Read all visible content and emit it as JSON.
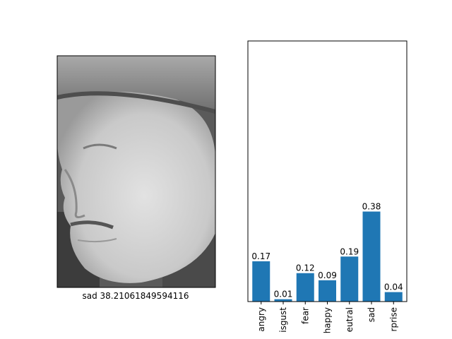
{
  "face_panel": {
    "caption": "sad 38.21061849594116",
    "image_description_icon": "grayscale-face-photo"
  },
  "chart_data": {
    "type": "bar",
    "categories": [
      "angry",
      "isgust",
      "fear",
      "happy",
      "eutral",
      "sad",
      "rprise"
    ],
    "values": [
      0.17,
      0.01,
      0.12,
      0.09,
      0.19,
      0.38,
      0.04
    ],
    "value_labels": [
      "0.17",
      "0.01",
      "0.12",
      "0.09",
      "0.19",
      "0.38",
      "0.04"
    ],
    "ylim": [
      0,
      1.1
    ],
    "bar_color": "#1f77b4",
    "title": "",
    "xlabel": "",
    "ylabel": "",
    "grid": false
  }
}
